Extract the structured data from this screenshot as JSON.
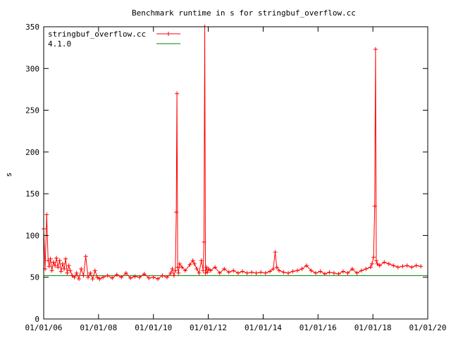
{
  "chart_data": {
    "type": "line",
    "title": "Benchmark runtime in s for stringbuf_overflow.cc",
    "xlabel": "",
    "ylabel": "s",
    "xlim": [
      "2006-01-01",
      "2020-01-01"
    ],
    "ylim": [
      0,
      350
    ],
    "x_ticks": [
      "01/01/06",
      "01/01/08",
      "01/01/10",
      "01/01/12",
      "01/01/14",
      "01/01/16",
      "01/01/18",
      "01/01/20"
    ],
    "y_ticks": [
      "0",
      "50",
      "100",
      "150",
      "200",
      "250",
      "300",
      "350"
    ],
    "legend_position": "top-left",
    "grid": false,
    "series": [
      {
        "name": "stringbuf_overflow.cc",
        "color": "#ff0000",
        "marker": "plus",
        "x": [
          "2006-01-01",
          "2006-01-20",
          "2006-02-10",
          "2006-03-01",
          "2006-03-15",
          "2006-04-01",
          "2006-04-20",
          "2006-05-10",
          "2006-06-01",
          "2006-06-20",
          "2006-07-10",
          "2006-08-01",
          "2006-08-20",
          "2006-09-10",
          "2006-10-01",
          "2006-10-20",
          "2006-11-10",
          "2006-12-01",
          "2006-12-20",
          "2007-01-15",
          "2007-02-15",
          "2007-03-15",
          "2007-04-15",
          "2007-05-15",
          "2007-06-15",
          "2007-07-15",
          "2007-08-15",
          "2007-09-15",
          "2007-10-15",
          "2007-11-15",
          "2007-12-15",
          "2008-01-15",
          "2008-03-01",
          "2008-05-01",
          "2008-07-01",
          "2008-09-01",
          "2008-11-01",
          "2009-01-01",
          "2009-03-01",
          "2009-05-01",
          "2009-07-01",
          "2009-09-01",
          "2009-11-01",
          "2010-01-01",
          "2010-03-01",
          "2010-05-01",
          "2010-07-01",
          "2010-08-20",
          "2010-09-10",
          "2010-10-01",
          "2010-10-20",
          "2010-11-01",
          "2010-11-10",
          "2010-11-20",
          "2010-12-01",
          "2010-12-15",
          "2011-01-15",
          "2011-03-01",
          "2011-05-01",
          "2011-06-10",
          "2011-07-01",
          "2011-08-01",
          "2011-09-01",
          "2011-10-01",
          "2011-10-25",
          "2011-11-05",
          "2011-11-15",
          "2011-11-25",
          "2011-12-10",
          "2011-12-20",
          "2012-01-05",
          "2012-02-01",
          "2012-04-01",
          "2012-06-01",
          "2012-08-01",
          "2012-10-01",
          "2012-12-01",
          "2013-02-01",
          "2013-04-01",
          "2013-06-01",
          "2013-08-01",
          "2013-10-01",
          "2013-12-01",
          "2014-02-01",
          "2014-04-01",
          "2014-05-15",
          "2014-06-10",
          "2014-07-01",
          "2014-08-01",
          "2014-10-01",
          "2014-12-01",
          "2015-02-01",
          "2015-04-01",
          "2015-06-01",
          "2015-08-01",
          "2015-10-01",
          "2015-12-01",
          "2016-02-01",
          "2016-04-01",
          "2016-06-01",
          "2016-08-01",
          "2016-10-01",
          "2016-12-01",
          "2017-02-01",
          "2017-04-01",
          "2017-06-01",
          "2017-08-01",
          "2017-10-01",
          "2017-12-01",
          "2017-12-20",
          "2018-01-10",
          "2018-01-25",
          "2018-02-05",
          "2018-02-15",
          "2018-03-01",
          "2018-04-01",
          "2018-06-01",
          "2018-08-01",
          "2018-10-01",
          "2018-12-01",
          "2019-02-01",
          "2019-04-01",
          "2019-06-01",
          "2019-08-01",
          "2019-10-01"
        ],
        "y": [
          108,
          60,
          125,
          70,
          63,
          72,
          58,
          68,
          64,
          73,
          62,
          70,
          57,
          66,
          60,
          72,
          55,
          64,
          58,
          52,
          50,
          55,
          48,
          60,
          52,
          75,
          50,
          55,
          48,
          58,
          50,
          48,
          50,
          52,
          49,
          53,
          50,
          55,
          49,
          51,
          50,
          54,
          49,
          50,
          48,
          52,
          50,
          55,
          60,
          52,
          58,
          128,
          270,
          62,
          55,
          66,
          62,
          58,
          65,
          70,
          66,
          60,
          55,
          70,
          58,
          92,
          350,
          55,
          62,
          56,
          60,
          58,
          62,
          55,
          60,
          56,
          58,
          55,
          57,
          55,
          56,
          55,
          56,
          55,
          57,
          60,
          80,
          62,
          58,
          56,
          55,
          57,
          58,
          60,
          64,
          58,
          55,
          57,
          54,
          56,
          55,
          54,
          57,
          55,
          60,
          55,
          58,
          60,
          62,
          66,
          74,
          135,
          323,
          70,
          66,
          64,
          68,
          66,
          64,
          62,
          63,
          64,
          62,
          64,
          63
        ]
      },
      {
        "name": "4.1.0",
        "color": "#008000",
        "marker": "none",
        "x": [
          "2006-01-01",
          "2020-01-01"
        ],
        "y": [
          52,
          52
        ]
      }
    ]
  }
}
